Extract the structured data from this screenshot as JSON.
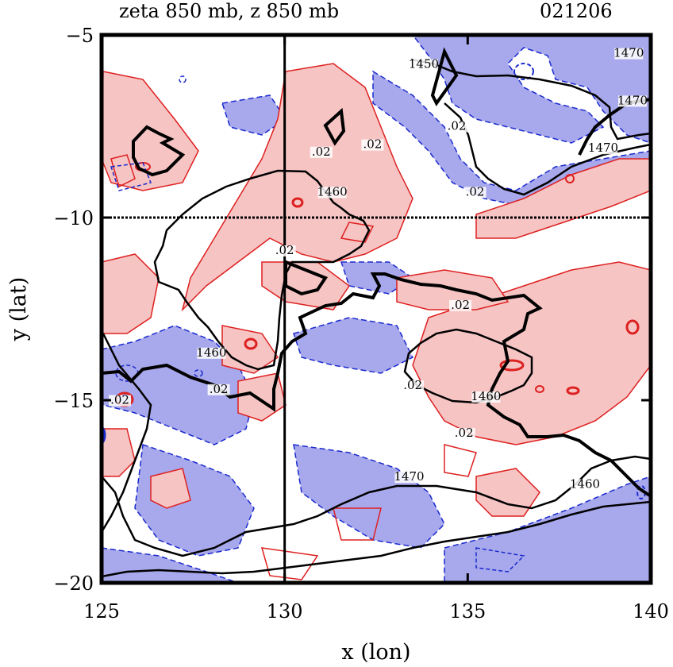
{
  "chart_data": {
    "type": "contour",
    "title": "zeta 850 mb, z 850 mb",
    "date_label": "021206",
    "xlabel": "x (lon)",
    "ylabel": "y (lat)",
    "xlim": [
      125,
      140
    ],
    "ylim": [
      -20,
      -5
    ],
    "x_ticks": [
      125,
      130,
      135,
      140
    ],
    "y_ticks": [
      -5,
      -10,
      -15,
      -20
    ],
    "reference_lines": {
      "x": 130,
      "y": -10
    },
    "colors": {
      "positive_fill": "#f7c4c4",
      "positive_line": "#dd2020",
      "negative_fill": "#a8a8ec",
      "negative_line": "#1a2acc",
      "height_line": "#000000"
    },
    "height_contour_labels": [
      {
        "text": "1460",
        "lon": 131.3,
        "lat": -9.4
      },
      {
        "text": "1460",
        "lon": 128.0,
        "lat": -13.8
      },
      {
        "text": "1460",
        "lon": 135.5,
        "lat": -15.0
      },
      {
        "text": "1460",
        "lon": 138.2,
        "lat": -17.4
      },
      {
        "text": "1470",
        "lon": 133.4,
        "lat": -17.2
      },
      {
        "text": "1470",
        "lon": 138.7,
        "lat": -8.2
      },
      {
        "text": "1470",
        "lon": 139.4,
        "lat": -5.6
      },
      {
        "text": "1470",
        "lon": 139.5,
        "lat": -6.9
      },
      {
        "text": "1450",
        "lon": 133.8,
        "lat": -5.9
      }
    ],
    "zeta_contour_labels": [
      {
        "text": ".02",
        "lon": 131.0,
        "lat": -8.3
      },
      {
        "text": ".02",
        "lon": 132.4,
        "lat": -8.1
      },
      {
        "text": ".02",
        "lon": 134.7,
        "lat": -7.6
      },
      {
        "text": ".02",
        "lon": 135.2,
        "lat": -9.4
      },
      {
        "text": ".02",
        "lon": 134.8,
        "lat": -12.5
      },
      {
        "text": ".02",
        "lon": 133.5,
        "lat": -14.7
      },
      {
        "text": ".02",
        "lon": 134.9,
        "lat": -16.0
      },
      {
        "text": ".02",
        "lon": 128.2,
        "lat": -14.8
      },
      {
        "text": ".02",
        "lon": 125.5,
        "lat": -15.1
      },
      {
        "text": ".02",
        "lon": 130.0,
        "lat": -11.0
      }
    ]
  }
}
